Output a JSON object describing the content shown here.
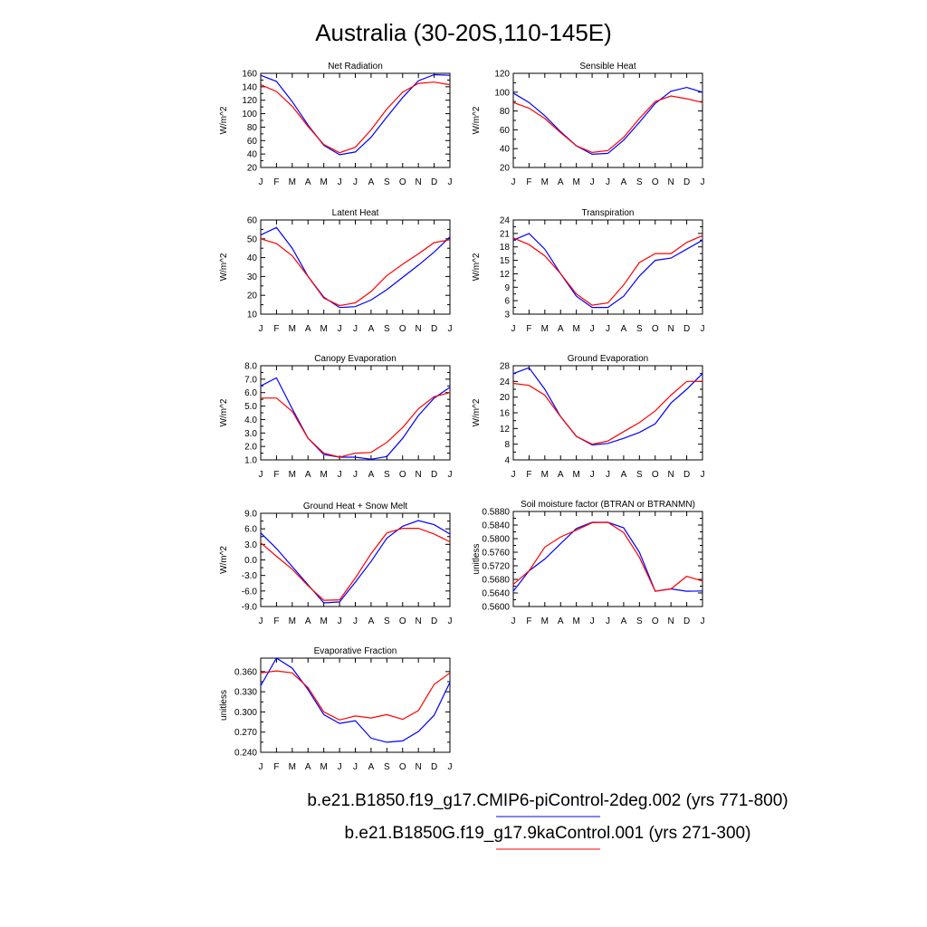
{
  "figure": {
    "title": "Australia (30-20S,110-145E)"
  },
  "colors": {
    "series_a": "#0000ff",
    "series_b": "#ff0000"
  },
  "legend": [
    {
      "label": "b.e21.B1850.f19_g17.CMIP6-piControl-2deg.002 (yrs 771-800)",
      "color": "#0000ff"
    },
    {
      "label": "b.e21.B1850G.f19_g17.9kaControl.001 (yrs 271-300)",
      "color": "#ff0000"
    }
  ],
  "chart_data": [
    {
      "type": "line",
      "title": "Net Radiation",
      "ylabel": "W/m^2",
      "categories": [
        "J",
        "F",
        "M",
        "A",
        "M",
        "J",
        "J",
        "A",
        "S",
        "O",
        "N",
        "D",
        "J"
      ],
      "ylim": [
        20,
        160
      ],
      "yticks": [
        20,
        40,
        60,
        80,
        100,
        120,
        140,
        160
      ],
      "ytick_labels": [
        "20",
        "40",
        "60",
        "80",
        "100",
        "120",
        "140",
        "160"
      ],
      "series": [
        {
          "color": "#0000ff",
          "values": [
            157,
            148,
            118,
            83,
            53,
            39,
            43,
            65,
            95,
            124,
            149,
            158,
            157
          ]
        },
        {
          "color": "#ff0000",
          "values": [
            143,
            133,
            111,
            81,
            54,
            42,
            50,
            76,
            107,
            132,
            145,
            147,
            143
          ]
        }
      ]
    },
    {
      "type": "line",
      "title": "Sensible Heat",
      "ylabel": "W/m^2",
      "categories": [
        "J",
        "F",
        "M",
        "A",
        "M",
        "J",
        "J",
        "A",
        "S",
        "O",
        "N",
        "D",
        "J"
      ],
      "ylim": [
        20,
        120
      ],
      "yticks": [
        20,
        40,
        60,
        80,
        100,
        120
      ],
      "ytick_labels": [
        "20",
        "40",
        "60",
        "80",
        "100",
        "120"
      ],
      "series": [
        {
          "color": "#0000ff",
          "values": [
            99,
            89,
            75,
            58,
            43,
            34,
            35,
            49,
            68,
            88,
            101,
            105,
            100
          ]
        },
        {
          "color": "#ff0000",
          "values": [
            89,
            83,
            72,
            57,
            43,
            36,
            38,
            52,
            72,
            90,
            96,
            93,
            89
          ]
        }
      ]
    },
    {
      "type": "line",
      "title": "Latent Heat",
      "ylabel": "W/m^2",
      "categories": [
        "J",
        "F",
        "M",
        "A",
        "M",
        "J",
        "J",
        "A",
        "S",
        "O",
        "N",
        "D",
        "J"
      ],
      "ylim": [
        10,
        60
      ],
      "yticks": [
        10,
        20,
        30,
        40,
        50,
        60
      ],
      "ytick_labels": [
        "10",
        "20",
        "30",
        "40",
        "50",
        "60"
      ],
      "series": [
        {
          "color": "#0000ff",
          "values": [
            52,
            56,
            45,
            30,
            19,
            13.5,
            14,
            17.5,
            23,
            29.5,
            36,
            43,
            51
          ]
        },
        {
          "color": "#ff0000",
          "values": [
            50,
            47.5,
            41,
            30,
            18.5,
            14.5,
            16,
            22,
            30.5,
            36.5,
            42,
            48,
            49.5
          ]
        }
      ]
    },
    {
      "type": "line",
      "title": "Transpiration",
      "ylabel": "W/m^2",
      "categories": [
        "J",
        "F",
        "M",
        "A",
        "M",
        "J",
        "J",
        "A",
        "S",
        "O",
        "N",
        "D",
        "J"
      ],
      "ylim": [
        3,
        24
      ],
      "yticks": [
        3,
        6,
        9,
        12,
        15,
        18,
        21,
        24
      ],
      "ytick_labels": [
        "3",
        "6",
        "9",
        "12",
        "15",
        "18",
        "21",
        "24"
      ],
      "series": [
        {
          "color": "#0000ff",
          "values": [
            19.5,
            21,
            17.5,
            12,
            7,
            4.5,
            4.5,
            7,
            11.5,
            15,
            15.5,
            17.5,
            19.5
          ]
        },
        {
          "color": "#ff0000",
          "values": [
            20,
            18.5,
            16,
            12,
            7.5,
            5,
            5.5,
            9.5,
            14.5,
            16.5,
            16.5,
            19,
            20.5
          ]
        }
      ]
    },
    {
      "type": "line",
      "title": "Canopy Evaporation",
      "ylabel": "W/m^2",
      "categories": [
        "J",
        "F",
        "M",
        "A",
        "M",
        "J",
        "J",
        "A",
        "S",
        "O",
        "N",
        "D",
        "J"
      ],
      "ylim": [
        1.0,
        8.0
      ],
      "yticks": [
        1,
        2,
        3,
        4,
        5,
        6,
        7,
        8
      ],
      "ytick_labels": [
        "1.0",
        "2.0",
        "3.0",
        "4.0",
        "5.0",
        "6.0",
        "7.0",
        "8.0"
      ],
      "series": [
        {
          "color": "#0000ff",
          "values": [
            6.5,
            7.1,
            4.8,
            2.6,
            1.4,
            1.2,
            1.2,
            1.05,
            1.25,
            2.6,
            4.3,
            5.6,
            6.4
          ]
        },
        {
          "color": "#ff0000",
          "values": [
            5.6,
            5.6,
            4.6,
            2.6,
            1.5,
            1.2,
            1.5,
            1.55,
            2.3,
            3.4,
            4.8,
            5.7,
            6.0
          ]
        }
      ]
    },
    {
      "type": "line",
      "title": "Ground Evaporation",
      "ylabel": "W/m^2",
      "categories": [
        "J",
        "F",
        "M",
        "A",
        "M",
        "J",
        "J",
        "A",
        "S",
        "O",
        "N",
        "D",
        "J"
      ],
      "ylim": [
        4,
        28
      ],
      "yticks": [
        4,
        8,
        12,
        16,
        20,
        24,
        28
      ],
      "ytick_labels": [
        "4",
        "8",
        "12",
        "16",
        "20",
        "24",
        "28"
      ],
      "series": [
        {
          "color": "#0000ff",
          "values": [
            26,
            27.5,
            22,
            15,
            10,
            7.8,
            8.2,
            9.5,
            11,
            13.2,
            18.5,
            22,
            26
          ]
        },
        {
          "color": "#ff0000",
          "values": [
            23.5,
            23,
            20.5,
            15,
            10,
            8,
            8.8,
            11.2,
            13.5,
            16.5,
            20.5,
            24,
            24
          ]
        }
      ]
    },
    {
      "type": "line",
      "title": "Ground Heat + Snow Melt",
      "ylabel": "W/m^2",
      "categories": [
        "J",
        "F",
        "M",
        "A",
        "M",
        "J",
        "J",
        "A",
        "S",
        "O",
        "N",
        "D",
        "J"
      ],
      "ylim": [
        -9.0,
        9.0
      ],
      "yticks": [
        -9,
        -6,
        -3,
        0,
        3,
        6,
        9
      ],
      "ytick_labels": [
        "-9.0",
        "-6.0",
        "-3.0",
        "0.0",
        "3.0",
        "6.0",
        "9.0"
      ],
      "series": [
        {
          "color": "#0000ff",
          "values": [
            5.2,
            2.2,
            -1.3,
            -4.8,
            -8.3,
            -8.1,
            -4.3,
            -0.3,
            4.2,
            6.5,
            7.6,
            6.8,
            5.0
          ]
        },
        {
          "color": "#ff0000",
          "values": [
            3.3,
            0.7,
            -1.8,
            -5.0,
            -7.8,
            -7.7,
            -3.5,
            1.2,
            5.2,
            6.1,
            6.1,
            5.0,
            3.5
          ]
        }
      ]
    },
    {
      "type": "line",
      "title": "Soil moisture factor (BTRAN or BTRANMN)",
      "ylabel": "unitless",
      "categories": [
        "J",
        "F",
        "M",
        "A",
        "M",
        "J",
        "J",
        "A",
        "S",
        "O",
        "N",
        "D",
        "J"
      ],
      "ylim": [
        0.56,
        0.588
      ],
      "yticks": [
        0.56,
        0.564,
        0.568,
        0.572,
        0.576,
        0.58,
        0.584,
        0.588
      ],
      "ytick_labels": [
        "0.5600",
        "0.5640",
        "0.5680",
        "0.5720",
        "0.5760",
        "0.5800",
        "0.5840",
        "0.5880"
      ],
      "series": [
        {
          "color": "#0000ff",
          "values": [
            0.5645,
            0.5705,
            0.574,
            0.5785,
            0.583,
            0.5848,
            0.5848,
            0.5832,
            0.576,
            0.5645,
            0.5652,
            0.5645,
            0.5646
          ]
        },
        {
          "color": "#ff0000",
          "values": [
            0.5665,
            0.5705,
            0.5775,
            0.5805,
            0.5825,
            0.5847,
            0.5848,
            0.5818,
            0.5745,
            0.5645,
            0.5652,
            0.5689,
            0.5675
          ]
        }
      ]
    },
    {
      "type": "line",
      "title": "Evaporative Fraction",
      "ylabel": "unitless",
      "categories": [
        "J",
        "F",
        "M",
        "A",
        "M",
        "J",
        "J",
        "A",
        "S",
        "O",
        "N",
        "D",
        "J"
      ],
      "ylim": [
        0.24,
        0.38
      ],
      "yticks": [
        0.24,
        0.27,
        0.3,
        0.33,
        0.36
      ],
      "ytick_labels": [
        "0.240",
        "0.270",
        "0.300",
        "0.330",
        "0.360"
      ],
      "series": [
        {
          "color": "#0000ff",
          "values": [
            0.339,
            0.38,
            0.365,
            0.333,
            0.296,
            0.283,
            0.287,
            0.261,
            0.255,
            0.257,
            0.271,
            0.295,
            0.344
          ]
        },
        {
          "color": "#ff0000",
          "values": [
            0.358,
            0.361,
            0.358,
            0.336,
            0.3,
            0.288,
            0.294,
            0.291,
            0.296,
            0.289,
            0.302,
            0.341,
            0.358
          ]
        }
      ]
    }
  ]
}
